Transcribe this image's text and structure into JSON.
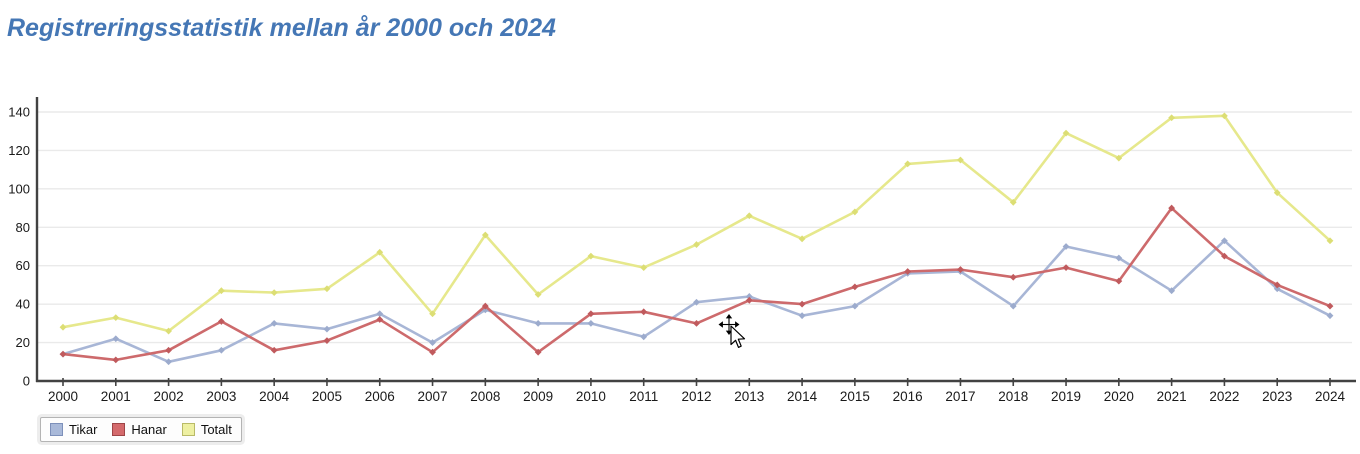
{
  "page": {
    "title": "Registreringsstatistik mellan år 2000 och 2024",
    "title_color": "#4577b5",
    "background": "#ffffff"
  },
  "chart_data": {
    "type": "line",
    "title": "Registreringsstatistik mellan år 2000 och 2024",
    "xlabel": "",
    "ylabel": "",
    "x": [
      2000,
      2001,
      2002,
      2003,
      2004,
      2005,
      2006,
      2007,
      2008,
      2009,
      2010,
      2011,
      2012,
      2013,
      2014,
      2015,
      2016,
      2017,
      2018,
      2019,
      2020,
      2021,
      2022,
      2023,
      2024
    ],
    "series": [
      {
        "name": "Tikar",
        "line_color": "#a8b6d6",
        "marker_color": "#9cabcd",
        "legend_fill": "#a9b9d9",
        "legend_border": "#7d90ba",
        "values": [
          14,
          22,
          10,
          16,
          30,
          27,
          35,
          20,
          37,
          30,
          30,
          23,
          41,
          44,
          34,
          39,
          56,
          57,
          39,
          70,
          64,
          47,
          73,
          48,
          34
        ]
      },
      {
        "name": "Hanar",
        "line_color": "#cd6a6c",
        "marker_color": "#c05a5d",
        "legend_fill": "#d46a6c",
        "legend_border": "#9e4547",
        "values": [
          14,
          11,
          16,
          31,
          16,
          21,
          32,
          15,
          39,
          15,
          35,
          36,
          30,
          42,
          40,
          49,
          57,
          58,
          54,
          59,
          52,
          90,
          65,
          50,
          39
        ]
      },
      {
        "name": "Totalt",
        "line_color": "#e6e88c",
        "marker_color": "#dcde74",
        "legend_fill": "#eef0a2",
        "legend_border": "#b9ba67",
        "values": [
          28,
          33,
          26,
          47,
          46,
          48,
          67,
          35,
          76,
          45,
          65,
          59,
          71,
          86,
          74,
          88,
          113,
          115,
          93,
          129,
          116,
          137,
          138,
          98,
          73
        ]
      }
    ],
    "ylim": [
      0,
      140
    ],
    "yticks": [
      0,
      20,
      40,
      60,
      80,
      100,
      120,
      140
    ],
    "grid": true,
    "grid_color": "#eaeaea",
    "axis_color": "#424242",
    "label_color": "#1a1a1a",
    "legend_position": "bottom-left"
  },
  "cursor": {
    "icon": "move-drag-pointer"
  }
}
